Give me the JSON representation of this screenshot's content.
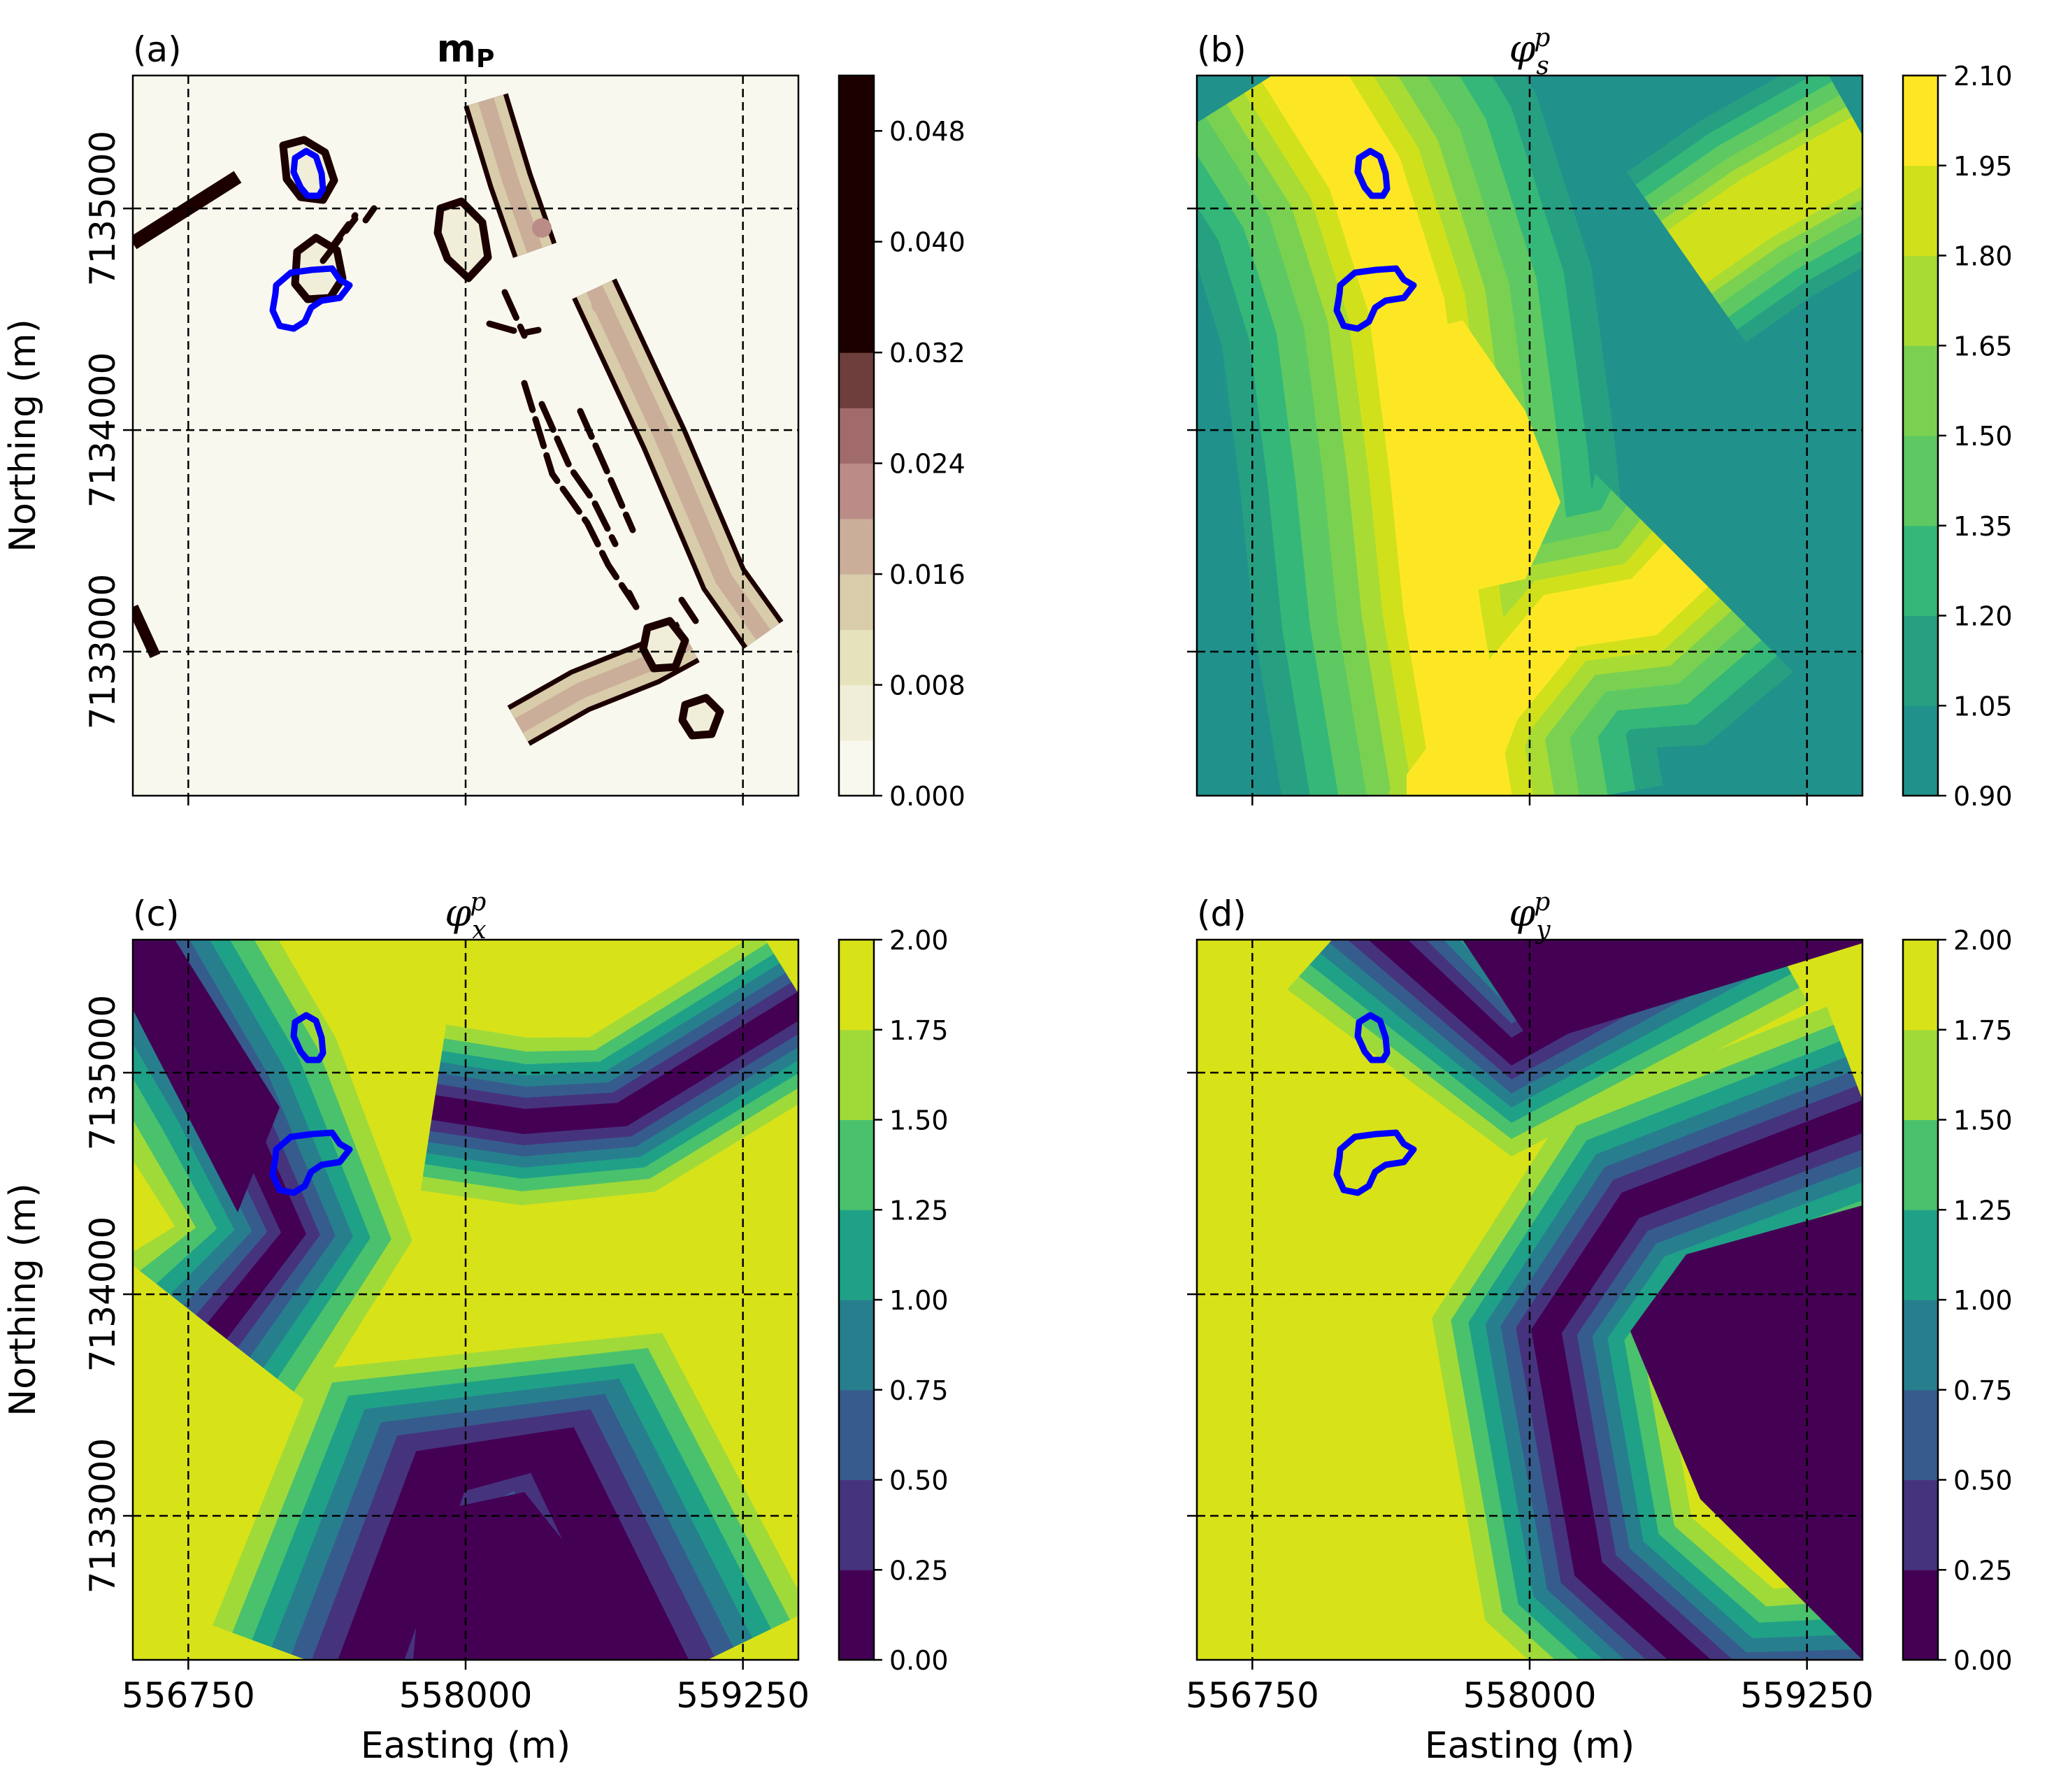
{
  "figure": {
    "panels": [
      {
        "id": "a",
        "label": "(a)",
        "title": "m",
        "title_sub": "P",
        "title_bold": true,
        "colormap": "pink_r",
        "colorbar": {
          "ticks": [
            "0.000",
            "0.008",
            "0.016",
            "0.024",
            "0.032",
            "0.040",
            "0.048"
          ],
          "values": [
            0,
            0.008,
            0.016,
            0.024,
            0.032,
            0.04,
            0.048
          ],
          "range": [
            0,
            0.052
          ],
          "levels": [
            0,
            0.004,
            0.008,
            0.012,
            0.016,
            0.02,
            0.024,
            0.028,
            0.032,
            0.052
          ],
          "colors": [
            "#f9f8ef",
            "#f0eed8",
            "#e6e2bc",
            "#d8ccaa",
            "#caae99",
            "#bb8c87",
            "#a06b6a",
            "#6e3e3c",
            "#1c0000"
          ]
        },
        "show_xticklabels": false,
        "show_yticklabels": true
      },
      {
        "id": "b",
        "label": "(b)",
        "title": "φ",
        "title_sup": "p",
        "title_sub": "s",
        "colormap": "viridis",
        "colorbar": {
          "ticks": [
            "0.90",
            "1.05",
            "1.20",
            "1.35",
            "1.50",
            "1.65",
            "1.80",
            "1.95",
            "2.10"
          ],
          "values": [
            0.9,
            1.05,
            1.2,
            1.35,
            1.5,
            1.65,
            1.8,
            1.95,
            2.1
          ],
          "range": [
            0.9,
            2.1
          ],
          "colors": [
            "#21918c",
            "#27a082",
            "#35b779",
            "#5ec962",
            "#7ad151",
            "#a8db34",
            "#d0e11c",
            "#fde725"
          ]
        },
        "show_xticklabels": false,
        "show_yticklabels": false
      },
      {
        "id": "c",
        "label": "(c)",
        "title": "φ",
        "title_sup": "p",
        "title_sub": "x",
        "colormap": "viridis",
        "colorbar": {
          "ticks": [
            "0.00",
            "0.25",
            "0.50",
            "0.75",
            "1.00",
            "1.25",
            "1.50",
            "1.75",
            "2.00"
          ],
          "values": [
            0,
            0.25,
            0.5,
            0.75,
            1.0,
            1.25,
            1.5,
            1.75,
            2.0
          ],
          "range": [
            0,
            2
          ],
          "colors": [
            "#440154",
            "#46337e",
            "#365c8d",
            "#277f8e",
            "#1fa187",
            "#4ac16d",
            "#a0da39",
            "#d8e219"
          ]
        },
        "show_xticklabels": true,
        "show_yticklabels": true
      },
      {
        "id": "d",
        "label": "(d)",
        "title": "φ",
        "title_sup": "p",
        "title_sub": "y",
        "colormap": "viridis",
        "colorbar": {
          "ticks": [
            "0.00",
            "0.25",
            "0.50",
            "0.75",
            "1.00",
            "1.25",
            "1.50",
            "1.75",
            "2.00"
          ],
          "values": [
            0,
            0.25,
            0.5,
            0.75,
            1.0,
            1.25,
            1.5,
            1.75,
            2.0
          ],
          "range": [
            0,
            2
          ],
          "colors": [
            "#440154",
            "#46337e",
            "#365c8d",
            "#277f8e",
            "#1fa187",
            "#4ac16d",
            "#a0da39",
            "#d8e219"
          ]
        },
        "show_xticklabels": true,
        "show_yticklabels": false
      }
    ],
    "x_axis": {
      "label": "Easting (m)",
      "ticks": [
        "556750",
        "558000",
        "559250"
      ],
      "values": [
        556750,
        558000,
        559250
      ],
      "range": [
        556500,
        559500
      ]
    },
    "y_axis": {
      "label": "Northing (m)",
      "ticks": [
        "7133000",
        "7134000",
        "7135000"
      ],
      "values": [
        7133000,
        7134000,
        7135000
      ],
      "range": [
        7132350,
        7135600
      ]
    },
    "grid": "dashed black at tick positions",
    "outline_color": "#0000ff"
  },
  "chart_data": [
    {
      "type": "heatmap",
      "title": "mP",
      "panel": "(a)",
      "zlim": [
        0,
        0.052
      ],
      "colorbar_ticks": [
        0,
        0.008,
        0.016,
        0.024,
        0.032,
        0.04,
        0.048
      ],
      "xlim": [
        556500,
        559500
      ],
      "ylim": [
        7132350,
        7135600
      ],
      "grid": true
    },
    {
      "type": "heatmap",
      "title": "φ_s^p",
      "panel": "(b)",
      "zlim": [
        0.9,
        2.1
      ],
      "colorbar_ticks": [
        0.9,
        1.05,
        1.2,
        1.35,
        1.5,
        1.65,
        1.8,
        1.95,
        2.1
      ],
      "xlim": [
        556500,
        559500
      ],
      "ylim": [
        7132350,
        7135600
      ],
      "grid": true
    },
    {
      "type": "heatmap",
      "title": "φ_x^p",
      "panel": "(c)",
      "zlim": [
        0,
        2
      ],
      "colorbar_ticks": [
        0,
        0.25,
        0.5,
        0.75,
        1.0,
        1.25,
        1.5,
        1.75,
        2.0
      ],
      "xlabel": "Easting (m)",
      "ylabel": "Northing (m)",
      "xlim": [
        556500,
        559500
      ],
      "ylim": [
        7132350,
        7135600
      ],
      "grid": true
    },
    {
      "type": "heatmap",
      "title": "φ_y^p",
      "panel": "(d)",
      "zlim": [
        0,
        2
      ],
      "colorbar_ticks": [
        0,
        0.25,
        0.5,
        0.75,
        1.0,
        1.25,
        1.5,
        1.75,
        2.0
      ],
      "xlabel": "Easting (m)",
      "xlim": [
        556500,
        559500
      ],
      "ylim": [
        7132350,
        7135600
      ],
      "grid": true
    }
  ]
}
